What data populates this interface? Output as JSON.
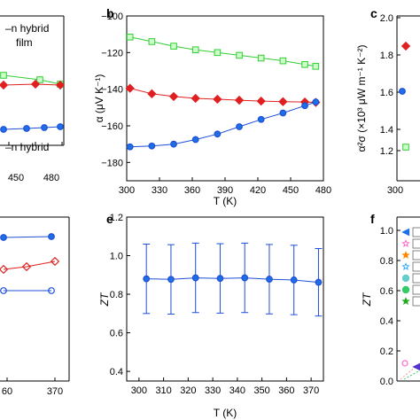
{
  "figure": {
    "panel_labels": {
      "b": "b",
      "c": "c",
      "e": "e",
      "f": "f"
    },
    "partial_text": {
      "line1": "–n hybrid",
      "line2": "film",
      "line3": "–n hybrid"
    },
    "partial_ticks": {
      "a_x": [
        "450",
        "480"
      ],
      "d_x": [
        "60",
        "370"
      ],
      "c_y": [
        "2.0",
        "1.8",
        "1.6",
        "1.4",
        "1.2"
      ],
      "c_x": "300"
    },
    "c_ylabel": "α²σ (×10³ μW m⁻¹ K⁻²)"
  },
  "chart_data": [
    {
      "panel": "b",
      "type": "line",
      "xlabel": "T (K)",
      "ylabel": "α (μV K⁻¹)",
      "xlim": [
        300,
        480
      ],
      "ylim": [
        -190,
        -100
      ],
      "xticks": [
        300,
        330,
        360,
        390,
        420,
        450,
        480
      ],
      "yticks": [
        -100,
        -120,
        -140,
        -160,
        -180
      ],
      "grid": false,
      "series": [
        {
          "color": "#33cc33",
          "fill": "#ccffcc",
          "marker": "square",
          "x": [
            303,
            323,
            343,
            363,
            383,
            403,
            423,
            443,
            463,
            473
          ],
          "y": [
            -111.5,
            -114,
            -116.5,
            -118.5,
            -120,
            -121.5,
            -123,
            -124.5,
            -126.5,
            -127.5
          ]
        },
        {
          "color": "#e02020",
          "fill": "#e02020",
          "marker": "diamond",
          "x": [
            303,
            323,
            343,
            363,
            383,
            403,
            423,
            443,
            463,
            473
          ],
          "y": [
            -139.5,
            -142.5,
            -144,
            -145,
            -145.5,
            -146,
            -146.5,
            -146.8,
            -147,
            -147.2
          ]
        },
        {
          "color": "#1e4fd6",
          "fill": "#1e6fe6",
          "marker": "circle",
          "x": [
            303,
            323,
            343,
            363,
            383,
            403,
            423,
            443,
            463,
            473
          ],
          "y": [
            -171.5,
            -171,
            -170,
            -167.5,
            -164.5,
            -160.5,
            -156.5,
            -153,
            -149,
            -147
          ]
        }
      ]
    },
    {
      "panel": "e",
      "type": "line",
      "xlabel": "T (K)",
      "ylabel": "ZT",
      "xlim": [
        295,
        375
      ],
      "ylim": [
        0.35,
        1.2
      ],
      "xticks": [
        300,
        310,
        320,
        330,
        340,
        350,
        360,
        370
      ],
      "yticks": [
        0.4,
        0.6,
        0.8,
        1.0,
        1.2
      ],
      "grid": false,
      "series": [
        {
          "color": "#1e4fd6",
          "fill": "#1e6fe6",
          "marker": "circle",
          "x": [
            303,
            313,
            323,
            333,
            343,
            353,
            363,
            373
          ],
          "y": [
            0.88,
            0.877,
            0.885,
            0.882,
            0.885,
            0.878,
            0.874,
            0.862
          ],
          "err": [
            0.18,
            0.18,
            0.18,
            0.18,
            0.18,
            0.18,
            0.18,
            0.175
          ]
        }
      ]
    }
  ],
  "partial_panels": {
    "a": {
      "series": [
        {
          "color": "#33cc33",
          "fill": "#ccffcc",
          "marker": "square",
          "pts": [
            [
              4,
              85
            ],
            [
              45,
              90
            ],
            [
              68,
              95
            ]
          ]
        },
        {
          "color": "#e02020",
          "fill": "#e02020",
          "marker": "diamond",
          "pts": [
            [
              4,
              96
            ],
            [
              40,
              95
            ],
            [
              68,
              96
            ]
          ]
        },
        {
          "color": "#1e4fd6",
          "fill": "#1e6fe6",
          "marker": "circle",
          "pts": [
            [
              4,
              146
            ],
            [
              30,
              145
            ],
            [
              50,
              144
            ],
            [
              68,
              143
            ]
          ]
        }
      ]
    },
    "c": {
      "series": [
        {
          "color": "#e02020",
          "fill": "#e02020",
          "marker": "diamond",
          "pts": [
            [
              458,
              52
            ]
          ]
        },
        {
          "color": "#1e4fd6",
          "fill": "#1e6fe6",
          "marker": "circle",
          "pts": [
            [
              454,
              103
            ]
          ]
        },
        {
          "color": "#33cc33",
          "fill": "#ccffcc",
          "marker": "square",
          "pts": [
            [
              458,
              166
            ]
          ]
        }
      ]
    },
    "d": {
      "series": [
        {
          "color": "#1e4fd6",
          "fill": "#1e6fe6",
          "marker": "circle",
          "pts": [
            [
              4,
              268
            ],
            [
              58,
              267
            ]
          ]
        },
        {
          "color": "#e02020",
          "fill": "none",
          "marker": "diamond",
          "pts": [
            [
              4,
              304
            ],
            [
              30,
              301
            ],
            [
              62,
              295
            ]
          ]
        },
        {
          "color": "#1e4fd6",
          "fill": "none",
          "marker": "circle",
          "pts": [
            [
              4,
              328
            ],
            [
              58,
              328
            ]
          ]
        }
      ]
    }
  },
  "f_partial": {
    "ylabel": "ZT",
    "yticks": [
      "1.0",
      "0.8",
      "0.6",
      "0.4",
      "0.2",
      "0.0"
    ],
    "legend_markers": [
      {
        "shape": "triangle-left",
        "color": "#1e6fe6"
      },
      {
        "shape": "star",
        "color": "#ff66cc",
        "open": true
      },
      {
        "shape": "star",
        "color": "#ff8800"
      },
      {
        "shape": "star",
        "color": "#33aaff",
        "open": true
      },
      {
        "shape": "circle",
        "color": "#66cccc"
      },
      {
        "shape": "circle",
        "color": "#33cc66"
      },
      {
        "shape": "star",
        "color": "#22aa22"
      }
    ]
  }
}
